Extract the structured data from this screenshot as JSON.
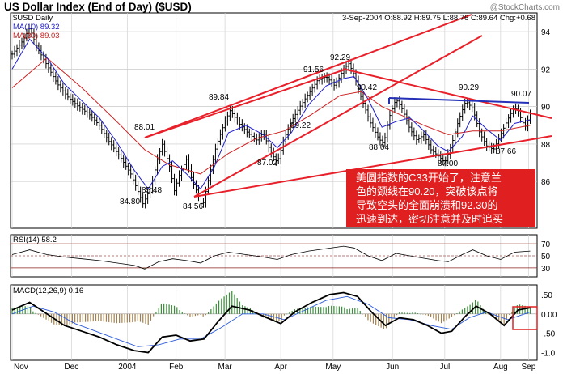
{
  "header": {
    "title": "US Dollar Index (End of Day) ($USD)",
    "watermark": "@StockCharts.com",
    "symbol_label": "$USD Daily",
    "ma10_label": "MA(10) 89.32",
    "ma30_label": "MA(30) 89.03",
    "ohlc_text": "3-Sep-2004 O:88.92 H:89.75 L:88.76 C:89.64 Chg:+0.68"
  },
  "annotation": {
    "lines": [
      "美圆指数的C33开始了，注意兰",
      "色的颈线在90.20，突破该点将",
      "导致空头的全面崩溃和92.30的",
      "迅速到达，密切注意并及时追买"
    ]
  },
  "colors": {
    "price": "#000000",
    "ma10": "#1f1fcc",
    "ma30": "#cc1f1f",
    "trendline": "#e8202a",
    "neckline": "#2430b8",
    "hist_green": "#3c8c3c",
    "hist_brown": "#a08050",
    "annotation_text": "#ffffff"
  },
  "chart_data": [
    {
      "type": "line",
      "panel": "price",
      "x_ticks": [
        "Nov",
        "Dec",
        "2004",
        "Feb",
        "Mar",
        "Apr",
        "May",
        "Jun",
        "Jul",
        "Aug",
        "Sep"
      ],
      "y_ticks": [
        86,
        88,
        90,
        92,
        94
      ],
      "ylim": [
        83.5,
        95
      ],
      "x_count": 215,
      "series": [
        {
          "name": "$USD Daily",
          "points": [
            [
              0,
              92.8
            ],
            [
              6,
              93.5
            ],
            [
              10,
              94.2
            ],
            [
              14,
              93.2
            ],
            [
              20,
              92.2
            ],
            [
              26,
              91.2
            ],
            [
              32,
              90.5
            ],
            [
              38,
              90.0
            ],
            [
              44,
              89.6
            ],
            [
              50,
              89.0
            ],
            [
              55,
              88.2
            ],
            [
              62,
              87.3
            ],
            [
              68,
              86.4
            ],
            [
              72,
              85.5
            ],
            [
              75,
              84.8
            ],
            [
              80,
              85.8
            ],
            [
              83,
              87.1
            ],
            [
              86,
              88.0
            ],
            [
              90,
              86.9
            ],
            [
              93,
              85.5
            ],
            [
              96,
              86.4
            ],
            [
              100,
              87.2
            ],
            [
              103,
              86.1
            ],
            [
              107,
              85.2
            ],
            [
              109,
              84.6
            ],
            [
              113,
              86.3
            ],
            [
              117,
              87.9
            ],
            [
              122,
              89.2
            ],
            [
              125,
              89.8
            ],
            [
              130,
              89.1
            ],
            [
              135,
              88.6
            ],
            [
              140,
              88.2
            ],
            [
              144,
              88.6
            ],
            [
              148,
              87.6
            ],
            [
              152,
              87.0
            ],
            [
              156,
              88.3
            ],
            [
              160,
              89.2
            ],
            [
              165,
              90.0
            ],
            [
              170,
              90.7
            ],
            [
              175,
              91.4
            ],
            [
              180,
              91.6
            ],
            [
              185,
              91.1
            ],
            [
              190,
              92.0
            ],
            [
              193,
              92.3
            ],
            [
              196,
              91.7
            ],
            [
              200,
              90.5
            ],
            [
              205,
              89.2
            ],
            [
              210,
              88.3
            ],
            [
              213,
              88.0
            ],
            [
              216,
              89.4
            ],
            [
              220,
              90.4
            ],
            [
              224,
              89.8
            ],
            [
              228,
              88.8
            ],
            [
              232,
              88.2
            ],
            [
              236,
              88.5
            ],
            [
              240,
              87.7
            ],
            [
              245,
              87.3
            ],
            [
              248,
              87.0
            ],
            [
              252,
              88.0
            ],
            [
              256,
              89.3
            ],
            [
              260,
              90.3
            ],
            [
              264,
              89.9
            ],
            [
              268,
              88.6
            ],
            [
              272,
              87.9
            ],
            [
              276,
              87.7
            ],
            [
              280,
              88.5
            ],
            [
              284,
              89.3
            ],
            [
              288,
              90.0
            ],
            [
              291,
              89.5
            ],
            [
              294,
              88.9
            ],
            [
              297,
              89.6
            ]
          ]
        },
        {
          "name": "MA(10)",
          "points": [
            [
              0,
              92.0
            ],
            [
              10,
              93.6
            ],
            [
              20,
              92.6
            ],
            [
              30,
              91.2
            ],
            [
              40,
              90.3
            ],
            [
              50,
              89.4
            ],
            [
              60,
              88.1
            ],
            [
              70,
              86.6
            ],
            [
              78,
              85.6
            ],
            [
              86,
              86.8
            ],
            [
              92,
              87.1
            ],
            [
              100,
              86.4
            ],
            [
              108,
              85.6
            ],
            [
              116,
              86.8
            ],
            [
              124,
              88.6
            ],
            [
              134,
              89.0
            ],
            [
              144,
              88.5
            ],
            [
              152,
              87.8
            ],
            [
              160,
              88.6
            ],
            [
              170,
              90.1
            ],
            [
              180,
              91.1
            ],
            [
              190,
              91.5
            ],
            [
              196,
              91.6
            ],
            [
              204,
              90.4
            ],
            [
              212,
              88.9
            ],
            [
              220,
              89.2
            ],
            [
              228,
              89.4
            ],
            [
              236,
              88.7
            ],
            [
              244,
              87.9
            ],
            [
              250,
              87.6
            ],
            [
              258,
              88.4
            ],
            [
              264,
              89.5
            ],
            [
              272,
              88.8
            ],
            [
              280,
              88.2
            ],
            [
              288,
              89.1
            ],
            [
              297,
              89.3
            ]
          ]
        },
        {
          "name": "MA(30)",
          "points": [
            [
              0,
              91.0
            ],
            [
              20,
              92.6
            ],
            [
              40,
              91.0
            ],
            [
              60,
              89.2
            ],
            [
              76,
              87.7
            ],
            [
              90,
              86.9
            ],
            [
              108,
              86.4
            ],
            [
              124,
              87.5
            ],
            [
              140,
              88.3
            ],
            [
              156,
              88.7
            ],
            [
              172,
              89.6
            ],
            [
              188,
              90.6
            ],
            [
              200,
              90.8
            ],
            [
              212,
              90.0
            ],
            [
              224,
              89.5
            ],
            [
              236,
              89.0
            ],
            [
              250,
              88.5
            ],
            [
              264,
              88.7
            ],
            [
              280,
              88.7
            ],
            [
              297,
              89.0
            ]
          ]
        }
      ],
      "annotations": [
        {
          "label": "88.01",
          "value": 88.01
        },
        {
          "label": "84.80",
          "value": 84.8
        },
        {
          "label": "85.48",
          "value": 85.48
        },
        {
          "label": "84.56",
          "value": 84.56
        },
        {
          "label": "89.84",
          "value": 89.84
        },
        {
          "label": "87.02",
          "value": 87.02
        },
        {
          "label": "91.56",
          "value": 91.56
        },
        {
          "label": "92.29",
          "value": 92.29
        },
        {
          "label": "89.22",
          "value": 89.22
        },
        {
          "label": "90.42",
          "value": 90.42
        },
        {
          "label": "88.04",
          "value": 88.04
        },
        {
          "label": "87.00",
          "value": 87.0
        },
        {
          "label": "90.29",
          "value": 90.29
        },
        {
          "label": "90.07",
          "value": 90.07
        },
        {
          "label": "87.66",
          "value": 87.66
        }
      ]
    },
    {
      "type": "line",
      "panel": "rsi",
      "label": "RSI(14) 58.2",
      "y_ticks": [
        30,
        50,
        70
      ],
      "ylim": [
        15,
        85
      ],
      "points": [
        [
          0,
          52
        ],
        [
          10,
          60
        ],
        [
          20,
          52
        ],
        [
          30,
          48
        ],
        [
          40,
          45
        ],
        [
          50,
          42
        ],
        [
          60,
          38
        ],
        [
          70,
          34
        ],
        [
          76,
          28
        ],
        [
          84,
          40
        ],
        [
          92,
          45
        ],
        [
          100,
          42
        ],
        [
          108,
          38
        ],
        [
          116,
          50
        ],
        [
          124,
          56
        ],
        [
          134,
          52
        ],
        [
          144,
          48
        ],
        [
          152,
          44
        ],
        [
          160,
          52
        ],
        [
          170,
          58
        ],
        [
          180,
          62
        ],
        [
          190,
          66
        ],
        [
          196,
          63
        ],
        [
          204,
          50
        ],
        [
          212,
          42
        ],
        [
          220,
          54
        ],
        [
          228,
          50
        ],
        [
          236,
          46
        ],
        [
          244,
          42
        ],
        [
          250,
          40
        ],
        [
          258,
          52
        ],
        [
          264,
          60
        ],
        [
          272,
          50
        ],
        [
          280,
          44
        ],
        [
          288,
          56
        ],
        [
          297,
          58
        ]
      ]
    },
    {
      "type": "line",
      "panel": "macd",
      "label": "MACD(12,26,9) 0.16",
      "y_tick_labels": [
        ".50",
        "0.00",
        "-.50",
        "-1.0"
      ],
      "y_ticks": [
        0.5,
        0.0,
        -0.5,
        -1.0
      ],
      "ylim": [
        -1.2,
        0.75
      ],
      "macd": [
        [
          0,
          0.1
        ],
        [
          10,
          0.3
        ],
        [
          20,
          0.0
        ],
        [
          30,
          -0.3
        ],
        [
          40,
          -0.45
        ],
        [
          50,
          -0.6
        ],
        [
          60,
          -0.8
        ],
        [
          70,
          -0.95
        ],
        [
          78,
          -1.0
        ],
        [
          86,
          -0.6
        ],
        [
          94,
          -0.55
        ],
        [
          102,
          -0.7
        ],
        [
          110,
          -0.65
        ],
        [
          118,
          -0.2
        ],
        [
          126,
          0.2
        ],
        [
          136,
          0.1
        ],
        [
          146,
          -0.1
        ],
        [
          154,
          -0.25
        ],
        [
          162,
          0.05
        ],
        [
          172,
          0.3
        ],
        [
          182,
          0.5
        ],
        [
          190,
          0.55
        ],
        [
          198,
          0.45
        ],
        [
          206,
          0.05
        ],
        [
          214,
          -0.3
        ],
        [
          222,
          -0.1
        ],
        [
          230,
          -0.15
        ],
        [
          238,
          -0.3
        ],
        [
          246,
          -0.5
        ],
        [
          252,
          -0.45
        ],
        [
          260,
          -0.05
        ],
        [
          266,
          0.2
        ],
        [
          274,
          0.0
        ],
        [
          282,
          -0.3
        ],
        [
          290,
          0.1
        ],
        [
          297,
          0.16
        ]
      ],
      "signal": [
        [
          0,
          0.0
        ],
        [
          12,
          0.2
        ],
        [
          24,
          0.05
        ],
        [
          36,
          -0.25
        ],
        [
          48,
          -0.45
        ],
        [
          60,
          -0.65
        ],
        [
          72,
          -0.85
        ],
        [
          84,
          -0.8
        ],
        [
          96,
          -0.65
        ],
        [
          108,
          -0.65
        ],
        [
          120,
          -0.35
        ],
        [
          132,
          0.0
        ],
        [
          144,
          0.0
        ],
        [
          156,
          -0.15
        ],
        [
          168,
          0.1
        ],
        [
          180,
          0.35
        ],
        [
          192,
          0.45
        ],
        [
          204,
          0.25
        ],
        [
          216,
          -0.1
        ],
        [
          228,
          -0.15
        ],
        [
          240,
          -0.3
        ],
        [
          252,
          -0.4
        ],
        [
          262,
          -0.1
        ],
        [
          272,
          0.05
        ],
        [
          284,
          -0.15
        ],
        [
          297,
          0.05
        ]
      ]
    }
  ]
}
